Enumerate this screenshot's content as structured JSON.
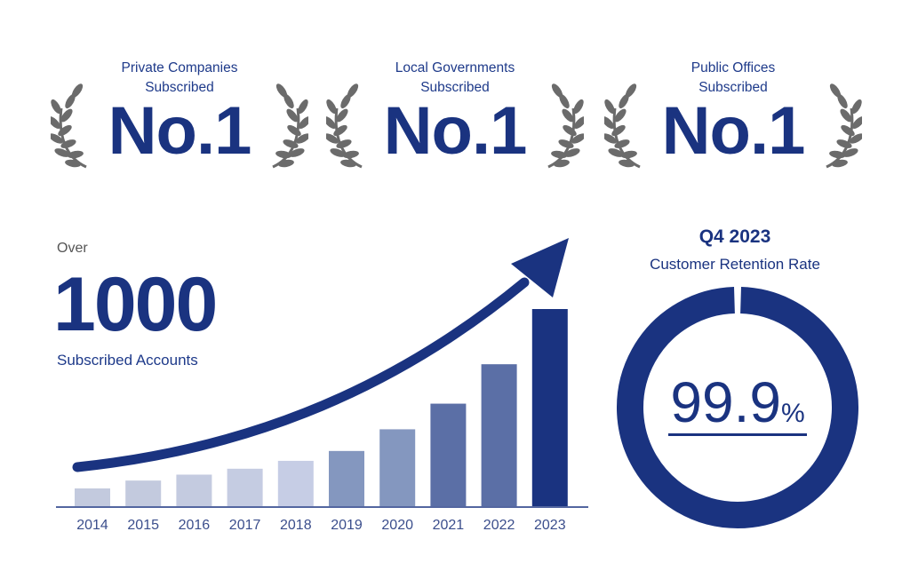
{
  "awards": [
    {
      "label_line1": "Private Companies",
      "label_line2": "Subscribed",
      "rank": "No.1"
    },
    {
      "label_line1": "Local Governments",
      "label_line2": "Subscribed",
      "rank": "No.1"
    },
    {
      "label_line1": "Public Offices",
      "label_line2": "Subscribed",
      "rank": "No.1"
    }
  ],
  "accounts": {
    "prefix": "Over",
    "value": "1000",
    "label": "Subscribed Accounts"
  },
  "retention": {
    "period": "Q4 2023",
    "title": "Customer Retention Rate",
    "value": "99.9",
    "unit": "%",
    "fraction": 0.999
  },
  "colors": {
    "navy": "#1a3380",
    "laurel": "#6b6b6b"
  },
  "chart_data": {
    "type": "bar",
    "categories": [
      "2014",
      "2015",
      "2016",
      "2017",
      "2018",
      "2019",
      "2020",
      "2021",
      "2022",
      "2023"
    ],
    "values": [
      9,
      13,
      16,
      19,
      23,
      28,
      39,
      52,
      72,
      100
    ],
    "colors": [
      "#c3cade",
      "#c3cade",
      "#c4cbe0",
      "#c5cce2",
      "#c6cde5",
      "#8497bf",
      "#8497bf",
      "#5b6fa6",
      "#5b6fa6",
      "#1a3380"
    ],
    "ylim": [
      0,
      100
    ],
    "trend_arrow": true,
    "grid": false
  }
}
